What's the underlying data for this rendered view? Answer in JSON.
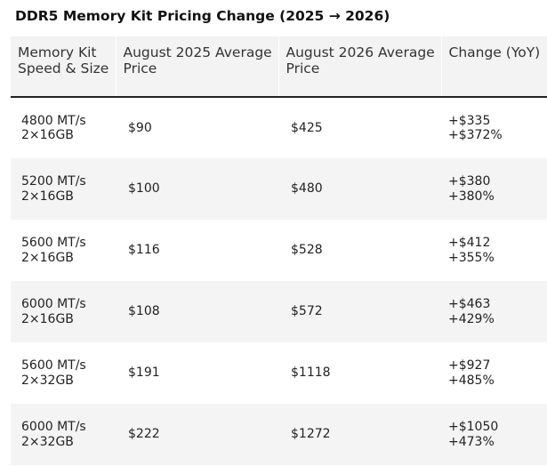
{
  "title": "DDR5 Memory Kit Pricing Change (2025 → 2026)",
  "columns": [
    "Memory Kit Speed & Size",
    "August 2025 Average Price",
    "August 2026 Average Price",
    "Change (YoY)"
  ],
  "rows": [
    {
      "speed": "4800 MT/s",
      "size": "2×16GB",
      "price_2025": "$90",
      "price_2026": "$425",
      "change_abs": "+$335",
      "change_pct": "+$372%"
    },
    {
      "speed": "5200 MT/s",
      "size": "2×16GB",
      "price_2025": "$100",
      "price_2026": "$480",
      "change_abs": "+$380",
      "change_pct": "+380%"
    },
    {
      "speed": "5600 MT/s",
      "size": "2×16GB",
      "price_2025": "$116",
      "price_2026": "$528",
      "change_abs": "+$412",
      "change_pct": "+355%"
    },
    {
      "speed": "6000 MT/s",
      "size": "2×16GB",
      "price_2025": "$108",
      "price_2026": "$572",
      "change_abs": "+$463",
      "change_pct": "+429%"
    },
    {
      "speed": "5600 MT/s",
      "size": "2×32GB",
      "price_2025": "$191",
      "price_2026": "$1118",
      "change_abs": "+$927",
      "change_pct": "+485%"
    },
    {
      "speed": "6000 MT/s",
      "size": "2×32GB",
      "price_2025": "$222",
      "price_2026": "$1272",
      "change_abs": "+$1050",
      "change_pct": "+473%"
    }
  ]
}
